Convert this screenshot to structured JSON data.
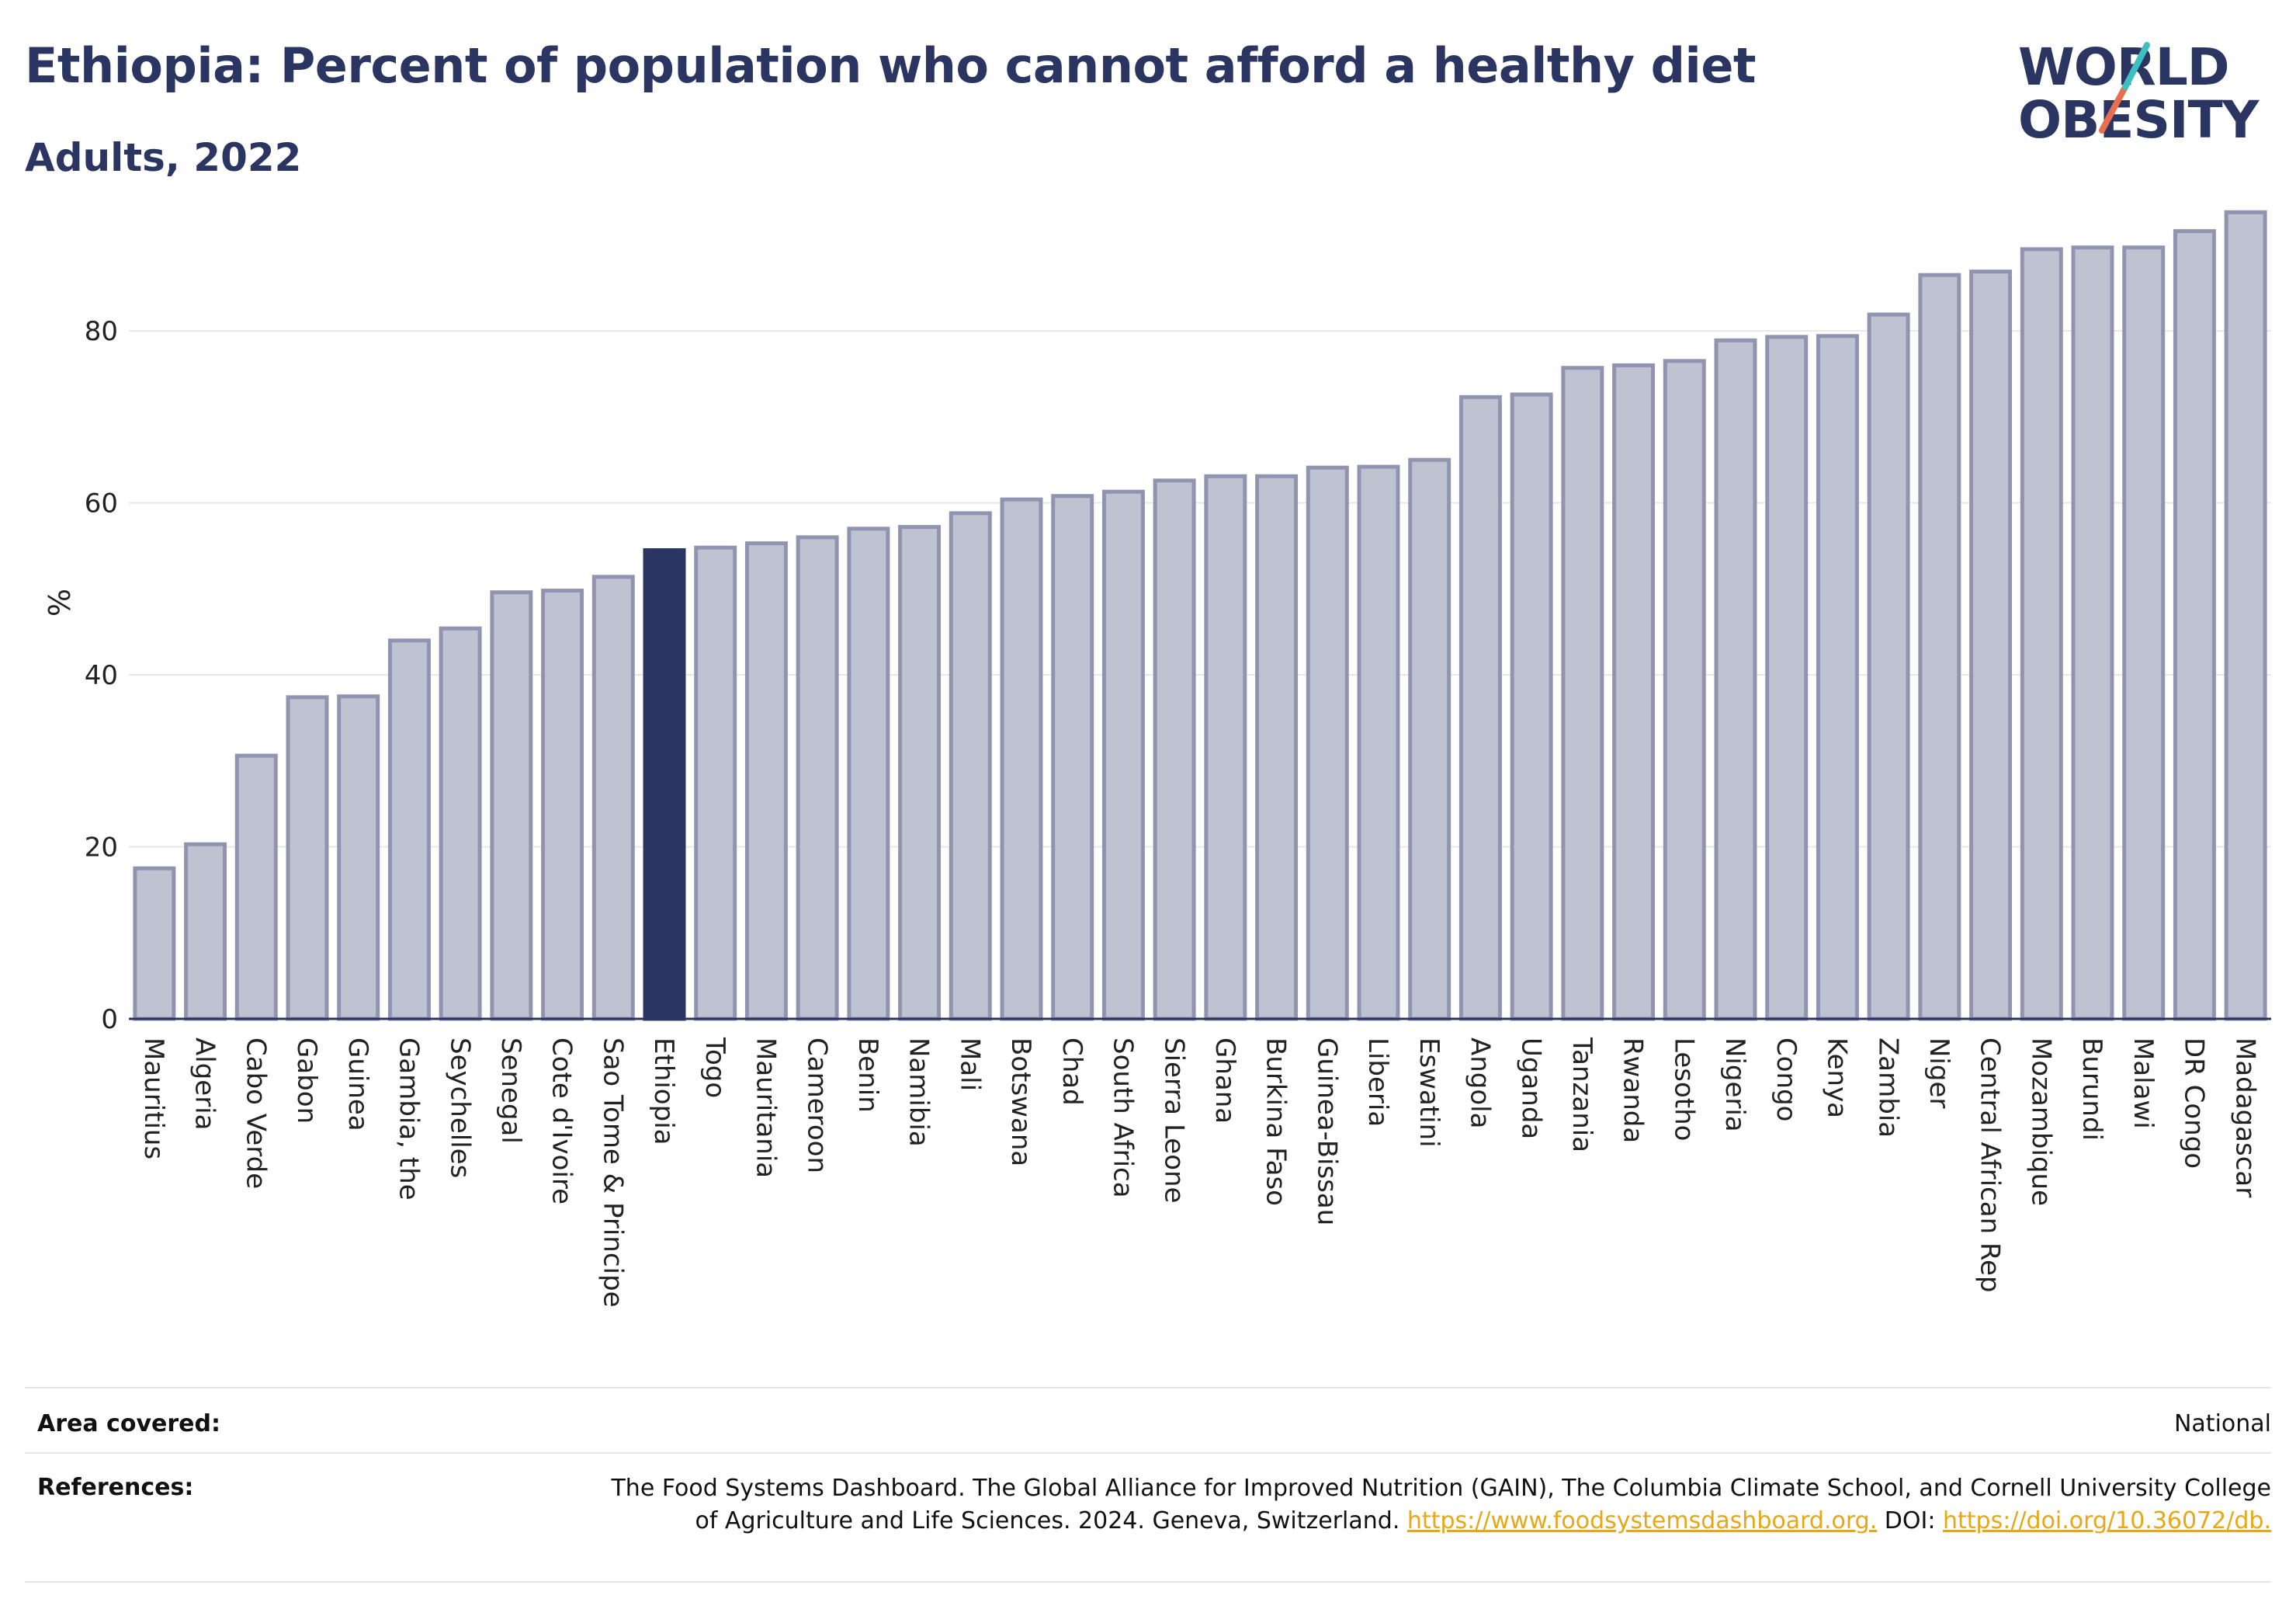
{
  "header": {
    "title": "Ethiopia: Percent of population who cannot afford a healthy diet",
    "subtitle": "Adults, 2022"
  },
  "logo": {
    "line1": "WORLD",
    "line2": "OBESITY",
    "slash_colors": [
      "#3dbfbf",
      "#e76f51"
    ]
  },
  "colors": {
    "bar": "#bfc3d1",
    "bar_border": "#9094b0",
    "highlight": "#2b3561",
    "grid": "#e8e8e8"
  },
  "chart_data": {
    "type": "bar",
    "title": "Ethiopia: Percent of population who cannot afford a healthy diet",
    "subtitle": "Adults, 2022",
    "xlabel": "",
    "ylabel": "%",
    "ylim": [
      0,
      95
    ],
    "yticks": [
      0,
      20,
      40,
      60,
      80
    ],
    "grid": true,
    "highlight": "Ethiopia",
    "categories": [
      "Mauritius",
      "Algeria",
      "Cabo Verde",
      "Gabon",
      "Guinea",
      "Gambia, the",
      "Seychelles",
      "Senegal",
      "Cote d'Ivoire",
      "Sao Tome & Principe",
      "Ethiopia",
      "Togo",
      "Mauritania",
      "Cameroon",
      "Benin",
      "Namibia",
      "Mali",
      "Botswana",
      "Chad",
      "South Africa",
      "Sierra Leone",
      "Ghana",
      "Burkina Faso",
      "Guinea-Bissau",
      "Liberia",
      "Eswatini",
      "Angola",
      "Uganda",
      "Tanzania",
      "Rwanda",
      "Lesotho",
      "Nigeria",
      "Congo",
      "Kenya",
      "Zambia",
      "Niger",
      "Central African Rep",
      "Mozambique",
      "Burundi",
      "Malawi",
      "DR Congo",
      "Madagascar"
    ],
    "values": [
      17.5,
      20.3,
      30.6,
      37.4,
      37.5,
      44.0,
      45.4,
      49.6,
      49.8,
      51.4,
      54.5,
      54.8,
      55.3,
      56.0,
      57.0,
      57.2,
      58.8,
      60.4,
      60.8,
      61.3,
      62.6,
      63.1,
      63.1,
      64.1,
      64.2,
      65.0,
      72.3,
      72.6,
      75.7,
      76.0,
      76.5,
      78.9,
      79.3,
      79.4,
      81.9,
      86.5,
      86.9,
      89.5,
      89.7,
      89.7,
      91.6,
      93.8
    ]
  },
  "footer": {
    "area_label": "Area covered:",
    "area_value": "National",
    "refs_label": "References:",
    "refs_text": "The Food Systems Dashboard. The Global Alliance for Improved Nutrition (GAIN), The Columbia Climate School, and Cornell University College of Agriculture and Life Sciences. 2024. Geneva, Switzerland.",
    "refs_link1": "https://www.foodsystemsdashboard.org.",
    "refs_doi": "DOI:",
    "refs_link2": "https://doi.org/10.36072/db."
  }
}
